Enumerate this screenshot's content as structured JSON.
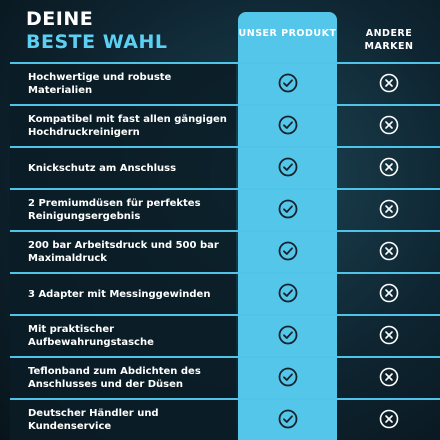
{
  "header": {
    "title_line1": "DEINE",
    "title_line2": "BESTE WAHL"
  },
  "columns": {
    "ours": "UNSER PRODUKT",
    "others": "ANDERE MARKEN"
  },
  "rows": [
    "Hochwertige und robuste Materialien",
    "Kompatibel mit fast allen gängigen Hochdruckreinigern",
    "Knickschutz am Anschluss",
    "2 Premiumdüsen für perfektes Reinigungsergebnis",
    "200 bar Arbeitsdruck und 500 bar Maximaldruck",
    "3 Adapter mit Messinggewinden",
    "Mit praktischer Aufbewahrungstasche",
    "Teflonband zum Abdichten des Anschlusses und der Düsen",
    "Deutscher Händler und Kundenservice"
  ]
}
